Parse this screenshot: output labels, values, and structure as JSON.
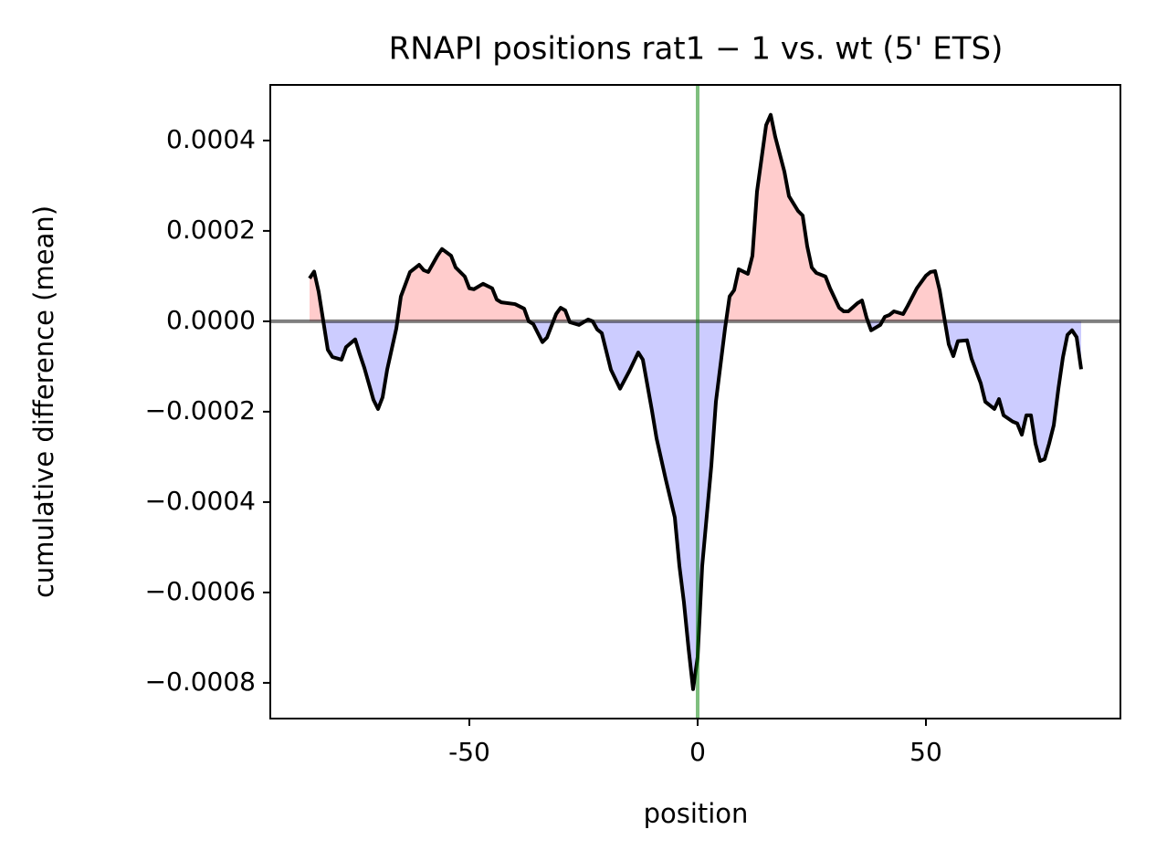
{
  "chart_data": {
    "type": "line",
    "title": "RNAPI positions rat1 − 1 vs. wt (5' ETS)",
    "xlabel": "position",
    "ylabel": "cumulative difference (mean)",
    "x": [
      -85,
      -84,
      -83,
      -81,
      -80,
      -78,
      -77,
      -75,
      -74,
      -73,
      -71,
      -70,
      -69,
      -68,
      -66,
      -65,
      -63,
      -61,
      -60,
      -59,
      -57,
      -56,
      -54,
      -53,
      -51,
      -50,
      -49,
      -47,
      -45,
      -44,
      -43,
      -40,
      -38,
      -37,
      -36,
      -34,
      -33,
      -31,
      -30,
      -29,
      -28,
      -26,
      -24,
      -23,
      -22,
      -21,
      -19,
      -17,
      -15,
      -13,
      -12,
      -10,
      -9,
      -7,
      -5,
      -4,
      -3,
      -2,
      -1,
      0,
      1,
      3,
      4,
      6,
      7,
      8,
      9,
      11,
      12,
      13,
      15,
      16,
      17,
      19,
      20,
      22,
      23,
      24,
      25,
      26,
      28,
      29,
      31,
      32,
      33,
      35,
      36,
      37,
      38,
      40,
      41,
      42,
      43,
      45,
      46,
      48,
      50,
      51,
      52,
      53,
      55,
      56,
      57,
      59,
      60,
      62,
      63,
      65,
      66,
      67,
      69,
      70,
      71,
      72,
      73,
      74,
      75,
      76,
      77,
      78,
      79,
      80,
      81,
      82,
      83,
      84
    ],
    "series": [
      {
        "color": "#000000",
        "values": [
          9.5e-05,
          0.00011,
          6.5e-05,
          -6.3e-05,
          -7.9e-05,
          -8.5e-05,
          -5.7e-05,
          -4e-05,
          -7.3e-05,
          -0.000103,
          -0.000174,
          -0.000194,
          -0.000168,
          -0.000107,
          -1.6e-05,
          5.5e-05,
          0.000109,
          0.000125,
          0.000113,
          0.000109,
          0.000145,
          0.00016,
          0.000145,
          0.000119,
          9.9e-05,
          7.3e-05,
          7.1e-05,
          8.3e-05,
          7.3e-05,
          4.8e-05,
          4.2e-05,
          3.8e-05,
          2.8e-05,
          0,
          -6e-06,
          -4.6e-05,
          -3.6e-05,
          1.6e-05,
          3e-05,
          2.4e-05,
          -2e-06,
          -8e-06,
          4e-06,
          0,
          -1.8e-05,
          -2.6e-05,
          -0.000107,
          -0.000149,
          -0.000111,
          -6.9e-05,
          -8.5e-05,
          -0.000198,
          -0.000259,
          -0.000349,
          -0.000434,
          -0.000541,
          -0.000622,
          -0.000723,
          -0.000814,
          -0.000743,
          -0.000541,
          -0.000319,
          -0.000178,
          -1.6e-05,
          5.5e-05,
          6.9e-05,
          0.000115,
          0.000105,
          0.000145,
          0.000287,
          0.000434,
          0.000457,
          0.000408,
          0.000331,
          0.000277,
          0.000244,
          0.000234,
          0.000166,
          0.000119,
          0.000107,
          9.9e-05,
          7.3e-05,
          3e-05,
          2.2e-05,
          2.2e-05,
          4e-05,
          4.6e-05,
          8e-06,
          -2e-05,
          -8e-06,
          1e-05,
          1.4e-05,
          2.2e-05,
          1.6e-05,
          3.4e-05,
          7.3e-05,
          0.000101,
          0.000109,
          0.000111,
          6.9e-05,
          -5.1e-05,
          -7.7e-05,
          -4.4e-05,
          -4.2e-05,
          -8.3e-05,
          -0.000137,
          -0.000178,
          -0.000194,
          -0.000172,
          -0.000208,
          -0.000222,
          -0.000226,
          -0.000251,
          -0.000208,
          -0.000208,
          -0.000271,
          -0.000309,
          -0.000305,
          -0.00027,
          -0.00023,
          -0.00015,
          -8e-05,
          -3e-05,
          -2e-05,
          -3.5e-05,
          -0.000106
        ]
      }
    ],
    "fill_positive_color": "rgba(255,0,0,0.2)",
    "fill_negative_color": "rgba(0,0,255,0.2)",
    "vline": {
      "x": 0,
      "color": "rgba(0,128,0,0.5)"
    },
    "hline": {
      "y": 0,
      "color": "rgba(0,0,0,0.5)"
    },
    "xlim": [
      -93.6,
      92.6
    ],
    "ylim": [
      -0.000879,
      0.000523
    ],
    "xticks": [
      -50,
      0,
      50
    ],
    "yticks": [
      {
        "value": 0.0004,
        "label": "0.0004"
      },
      {
        "value": 0.0002,
        "label": "0.0002"
      },
      {
        "value": 0,
        "label": "0.0000"
      },
      {
        "value": -0.0002,
        "label": "−0.0002"
      },
      {
        "value": -0.0004,
        "label": "−0.0004"
      },
      {
        "value": -0.0006,
        "label": "−0.0006"
      },
      {
        "value": -0.0008,
        "label": "−0.0008"
      }
    ]
  }
}
